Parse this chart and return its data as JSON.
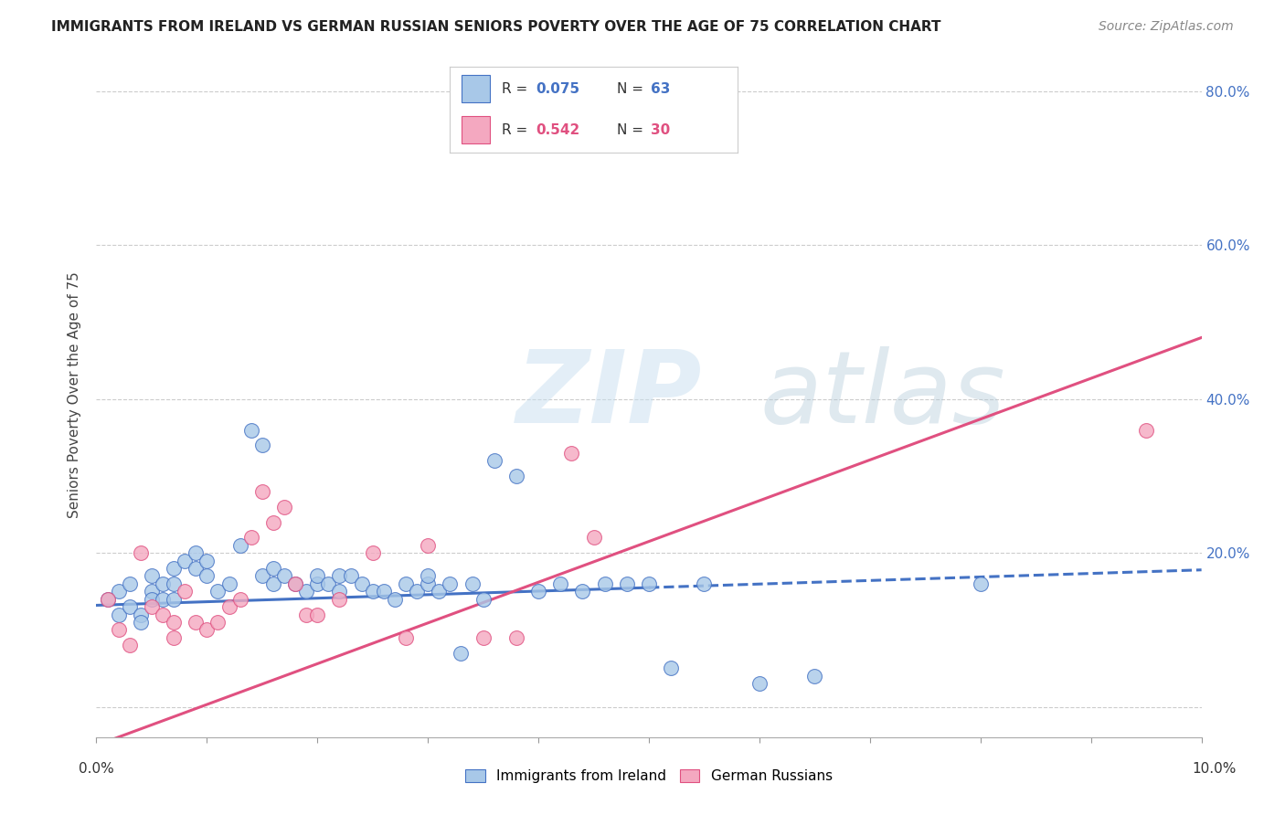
{
  "title": "IMMIGRANTS FROM IRELAND VS GERMAN RUSSIAN SENIORS POVERTY OVER THE AGE OF 75 CORRELATION CHART",
  "source": "Source: ZipAtlas.com",
  "ylabel": "Seniors Poverty Over the Age of 75",
  "series1_label": "Immigrants from Ireland",
  "series2_label": "German Russians",
  "color1": "#a8c8e8",
  "color2": "#f4a8c0",
  "trendline1_color": "#4472c4",
  "trendline2_color": "#e05080",
  "watermark": "ZIPatlas",
  "xlim": [
    0.0,
    0.1
  ],
  "ylim": [
    -0.04,
    0.85
  ],
  "right_yticks": [
    0.0,
    0.2,
    0.4,
    0.6,
    0.8
  ],
  "right_yticklabels": [
    "",
    "20.0%",
    "40.0%",
    "60.0%",
    "80.0%"
  ],
  "legend_r1": "0.075",
  "legend_n1": "63",
  "legend_r2": "0.542",
  "legend_n2": "30",
  "trendline1_solid_end": 0.05,
  "trendline1_y0": 0.132,
  "trendline1_y1": 0.178,
  "trendline2_y0": -0.05,
  "trendline2_y1": 0.48,
  "blue_x": [
    0.001,
    0.002,
    0.002,
    0.003,
    0.003,
    0.004,
    0.004,
    0.005,
    0.005,
    0.005,
    0.006,
    0.006,
    0.007,
    0.007,
    0.007,
    0.008,
    0.009,
    0.009,
    0.01,
    0.01,
    0.011,
    0.012,
    0.013,
    0.014,
    0.015,
    0.015,
    0.016,
    0.016,
    0.017,
    0.018,
    0.019,
    0.02,
    0.02,
    0.021,
    0.022,
    0.022,
    0.023,
    0.024,
    0.025,
    0.026,
    0.027,
    0.028,
    0.029,
    0.03,
    0.03,
    0.031,
    0.032,
    0.033,
    0.034,
    0.035,
    0.036,
    0.038,
    0.04,
    0.042,
    0.044,
    0.046,
    0.048,
    0.05,
    0.052,
    0.055,
    0.06,
    0.065,
    0.08
  ],
  "blue_y": [
    0.14,
    0.12,
    0.15,
    0.16,
    0.13,
    0.12,
    0.11,
    0.15,
    0.14,
    0.17,
    0.14,
    0.16,
    0.14,
    0.18,
    0.16,
    0.19,
    0.2,
    0.18,
    0.19,
    0.17,
    0.15,
    0.16,
    0.21,
    0.36,
    0.34,
    0.17,
    0.18,
    0.16,
    0.17,
    0.16,
    0.15,
    0.16,
    0.17,
    0.16,
    0.15,
    0.17,
    0.17,
    0.16,
    0.15,
    0.15,
    0.14,
    0.16,
    0.15,
    0.16,
    0.17,
    0.15,
    0.16,
    0.07,
    0.16,
    0.14,
    0.32,
    0.3,
    0.15,
    0.16,
    0.15,
    0.16,
    0.16,
    0.16,
    0.05,
    0.16,
    0.03,
    0.04,
    0.16
  ],
  "pink_x": [
    0.001,
    0.002,
    0.003,
    0.004,
    0.005,
    0.006,
    0.007,
    0.007,
    0.008,
    0.009,
    0.01,
    0.011,
    0.012,
    0.013,
    0.014,
    0.015,
    0.016,
    0.017,
    0.018,
    0.019,
    0.02,
    0.022,
    0.025,
    0.028,
    0.03,
    0.035,
    0.038,
    0.043,
    0.045,
    0.095
  ],
  "pink_y": [
    0.14,
    0.1,
    0.08,
    0.2,
    0.13,
    0.12,
    0.11,
    0.09,
    0.15,
    0.11,
    0.1,
    0.11,
    0.13,
    0.14,
    0.22,
    0.28,
    0.24,
    0.26,
    0.16,
    0.12,
    0.12,
    0.14,
    0.2,
    0.09,
    0.21,
    0.09,
    0.09,
    0.33,
    0.22,
    0.36
  ]
}
